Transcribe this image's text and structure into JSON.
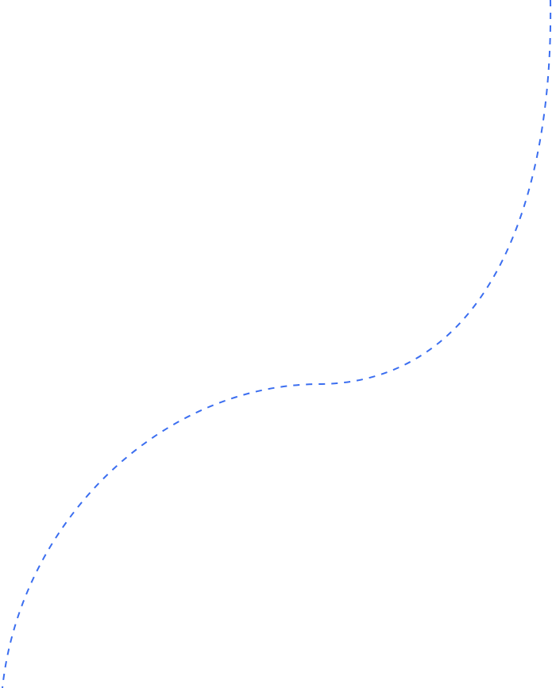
{
  "curve": {
    "stroke_color": "#3b6ef0",
    "style": "dashed"
  }
}
